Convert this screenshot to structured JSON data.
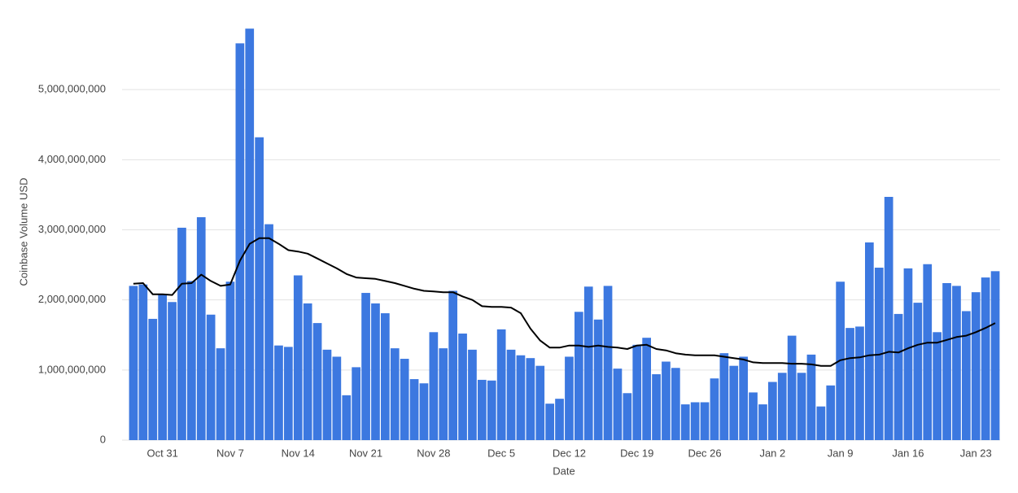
{
  "chart_data": {
    "type": "bar",
    "ylabel": "Coinbase Volume USD",
    "xlabel": "Date",
    "categories": [
      null,
      null,
      null,
      "Oct 31",
      null,
      null,
      null,
      null,
      null,
      null,
      "Nov 7",
      null,
      null,
      null,
      null,
      null,
      null,
      "Nov 14",
      null,
      null,
      null,
      null,
      null,
      null,
      "Nov 21",
      null,
      null,
      null,
      null,
      null,
      null,
      "Nov 28",
      null,
      null,
      null,
      null,
      null,
      null,
      "Dec 5",
      null,
      null,
      null,
      null,
      null,
      null,
      "Dec 12",
      null,
      null,
      null,
      null,
      null,
      null,
      "Dec 19",
      null,
      null,
      null,
      null,
      null,
      null,
      "Dec 26",
      null,
      null,
      null,
      null,
      null,
      null,
      "Jan 2",
      null,
      null,
      null,
      null,
      null,
      null,
      "Jan 9",
      null,
      null,
      null,
      null,
      null,
      null,
      "Jan 16",
      null,
      null,
      null,
      null,
      null,
      null,
      "Jan 23",
      null,
      null
    ],
    "series": [
      {
        "type": "bar",
        "color": "#3c78e0",
        "values": [
          2200000000,
          2220000000,
          1730000000,
          2080000000,
          1970000000,
          3030000000,
          2270000000,
          3180000000,
          1790000000,
          1310000000,
          2260000000,
          5660000000,
          5870000000,
          4320000000,
          3080000000,
          1350000000,
          1330000000,
          2350000000,
          1950000000,
          1670000000,
          1290000000,
          1190000000,
          640000000,
          1040000000,
          2100000000,
          1950000000,
          1810000000,
          1310000000,
          1160000000,
          870000000,
          810000000,
          1540000000,
          1310000000,
          2130000000,
          1520000000,
          1290000000,
          860000000,
          850000000,
          1580000000,
          1290000000,
          1210000000,
          1170000000,
          1060000000,
          520000000,
          590000000,
          1190000000,
          1830000000,
          2190000000,
          1720000000,
          2200000000,
          1020000000,
          670000000,
          1360000000,
          1460000000,
          940000000,
          1120000000,
          1030000000,
          510000000,
          540000000,
          540000000,
          880000000,
          1240000000,
          1060000000,
          1190000000,
          680000000,
          510000000,
          830000000,
          960000000,
          1490000000,
          960000000,
          1220000000,
          480000000,
          780000000,
          2260000000,
          1600000000,
          1620000000,
          2820000000,
          2460000000,
          3470000000,
          1800000000,
          2450000000,
          1960000000,
          2510000000,
          1540000000,
          2240000000,
          2200000000,
          1840000000,
          2110000000,
          2320000000,
          2410000000
        ]
      },
      {
        "type": "line",
        "color": "#000000",
        "values": [
          2230000000,
          2240000000,
          2080000000,
          2080000000,
          2070000000,
          2230000000,
          2240000000,
          2360000000,
          2270000000,
          2200000000,
          2220000000,
          2560000000,
          2800000000,
          2880000000,
          2880000000,
          2800000000,
          2710000000,
          2690000000,
          2660000000,
          2590000000,
          2520000000,
          2450000000,
          2370000000,
          2320000000,
          2310000000,
          2300000000,
          2270000000,
          2240000000,
          2200000000,
          2160000000,
          2130000000,
          2120000000,
          2110000000,
          2110000000,
          2050000000,
          2000000000,
          1910000000,
          1900000000,
          1900000000,
          1890000000,
          1810000000,
          1590000000,
          1420000000,
          1320000000,
          1320000000,
          1350000000,
          1350000000,
          1330000000,
          1350000000,
          1330000000,
          1320000000,
          1300000000,
          1350000000,
          1360000000,
          1300000000,
          1280000000,
          1240000000,
          1220000000,
          1210000000,
          1210000000,
          1210000000,
          1190000000,
          1170000000,
          1150000000,
          1110000000,
          1100000000,
          1100000000,
          1100000000,
          1090000000,
          1090000000,
          1080000000,
          1060000000,
          1060000000,
          1140000000,
          1170000000,
          1180000000,
          1210000000,
          1220000000,
          1260000000,
          1250000000,
          1310000000,
          1360000000,
          1390000000,
          1390000000,
          1430000000,
          1470000000,
          1490000000,
          1540000000,
          1600000000,
          1670000000
        ]
      }
    ],
    "ylim": [
      0,
      6000000000
    ],
    "yticks": [
      0,
      {
        "value": 1000000000,
        "label": "1,000,000,000"
      },
      {
        "value": 2000000000,
        "label": "2,000,000,000"
      },
      {
        "value": 3000000000,
        "label": "3,000,000,000"
      },
      {
        "value": 4000000000,
        "label": "4,000,000,000"
      },
      {
        "value": 5000000000,
        "label": "5,000,000,000"
      }
    ],
    "grid": true
  }
}
